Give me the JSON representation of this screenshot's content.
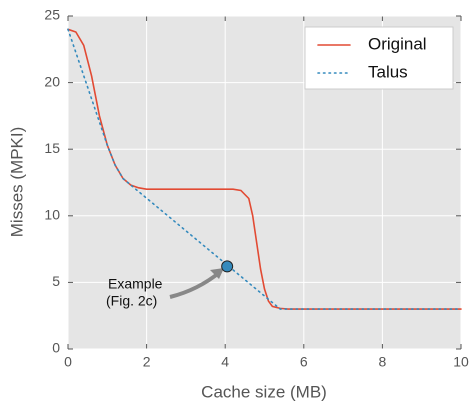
{
  "chart_data": {
    "type": "line",
    "xlabel": "Cache size (MB)",
    "ylabel": "Misses (MPKI)",
    "xlim": [
      0,
      10
    ],
    "ylim": [
      0,
      25
    ],
    "xticks": [
      0,
      2,
      4,
      6,
      8,
      10
    ],
    "yticks": [
      0,
      5,
      10,
      15,
      20,
      25
    ],
    "grid": true,
    "legend": "upper right",
    "series": [
      {
        "name": "Original",
        "color": "#e24a33",
        "style": "solid",
        "x": [
          0,
          0.2,
          0.4,
          0.6,
          0.8,
          1.0,
          1.2,
          1.4,
          1.6,
          1.8,
          2.0,
          2.5,
          3.0,
          3.5,
          4.0,
          4.2,
          4.4,
          4.6,
          4.7,
          4.8,
          4.9,
          5.0,
          5.1,
          5.2,
          5.4,
          5.6,
          6,
          7,
          8,
          9,
          10
        ],
        "values": [
          24,
          23.8,
          22.8,
          20.5,
          17.5,
          15.3,
          13.8,
          12.8,
          12.3,
          12.1,
          12,
          12,
          12,
          12,
          12,
          12,
          11.9,
          11.3,
          10,
          8,
          6,
          4.5,
          3.6,
          3.2,
          3.05,
          3,
          3,
          3,
          3,
          3,
          3
        ]
      },
      {
        "name": "Talus",
        "color": "#348abd",
        "style": "dotted",
        "x": [
          0,
          1.0,
          1.2,
          1.4,
          1.6,
          5.4,
          10
        ],
        "values": [
          24,
          15.3,
          13.8,
          12.8,
          12.3,
          3,
          3
        ]
      }
    ],
    "annotation": {
      "lines": [
        "Example",
        "(Fig. 2c)"
      ],
      "x": 4.05,
      "y": 6.2,
      "color": "#348abd"
    }
  }
}
